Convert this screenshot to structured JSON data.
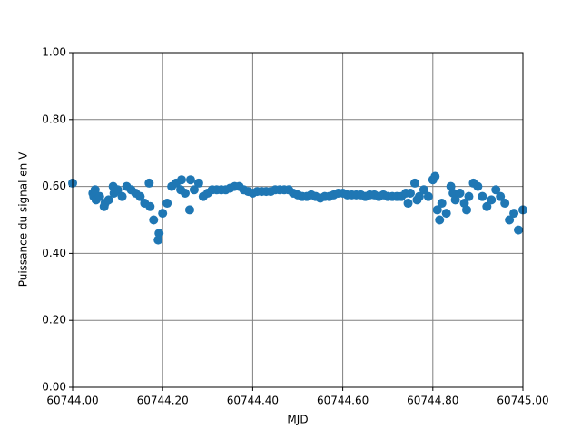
{
  "chart_data": {
    "type": "scatter",
    "xlabel": "MJD",
    "ylabel": "Puissance du signal en V",
    "color": "#1f77b4",
    "grid": true,
    "xlim": [
      60744,
      60745
    ],
    "ylim": [
      0,
      1
    ],
    "xticks": [
      {
        "value": 60744,
        "label": "60744.00"
      },
      {
        "value": 60744.2,
        "label": "60744.20"
      },
      {
        "value": 60744.4,
        "label": "60744.40"
      },
      {
        "value": 60744.6,
        "label": "60744.60"
      },
      {
        "value": 60744.8,
        "label": "60744.80"
      },
      {
        "value": 60745,
        "label": "60745.00"
      }
    ],
    "yticks": [
      {
        "value": 0,
        "label": "0.00"
      },
      {
        "value": 0.2,
        "label": "0.20"
      },
      {
        "value": 0.4,
        "label": "0.40"
      },
      {
        "value": 0.6,
        "label": "0.60"
      },
      {
        "value": 0.8,
        "label": "0.80"
      },
      {
        "value": 1,
        "label": "1.00"
      }
    ],
    "x": [
      60744.0,
      60744.045,
      60744.047,
      60744.05,
      60744.052,
      60744.06,
      60744.07,
      60744.072,
      60744.08,
      60744.09,
      60744.092,
      60744.1,
      60744.11,
      60744.12,
      60744.13,
      60744.14,
      60744.15,
      60744.16,
      60744.17,
      60744.172,
      60744.18,
      60744.19,
      60744.192,
      60744.2,
      60744.21,
      60744.22,
      60744.23,
      60744.24,
      60744.242,
      60744.25,
      60744.26,
      60744.262,
      60744.27,
      60744.28,
      60744.29,
      60744.3,
      60744.31,
      60744.32,
      60744.33,
      60744.34,
      60744.35,
      60744.36,
      60744.37,
      60744.38,
      60744.39,
      60744.4,
      60744.41,
      60744.42,
      60744.43,
      60744.44,
      60744.45,
      60744.46,
      60744.47,
      60744.48,
      60744.49,
      60744.5,
      60744.51,
      60744.52,
      60744.53,
      60744.54,
      60744.55,
      60744.56,
      60744.57,
      60744.58,
      60744.59,
      60744.6,
      60744.61,
      60744.62,
      60744.63,
      60744.64,
      60744.65,
      60744.66,
      60744.67,
      60744.68,
      60744.69,
      60744.7,
      60744.71,
      60744.72,
      60744.73,
      60744.74,
      60744.745,
      60744.75,
      60744.76,
      60744.765,
      60744.77,
      60744.78,
      60744.79,
      60744.8,
      60744.805,
      60744.81,
      60744.815,
      60744.82,
      60744.83,
      60744.84,
      60744.845,
      60744.85,
      60744.86,
      60744.87,
      60744.875,
      60744.88,
      60744.89,
      60744.9,
      60744.91,
      60744.92,
      60744.93,
      60744.94,
      60744.95,
      60744.96,
      60744.97,
      60744.98,
      60744.99,
      60745.0
    ],
    "y": [
      0.61,
      0.58,
      0.57,
      0.59,
      0.56,
      0.57,
      0.54,
      0.55,
      0.56,
      0.6,
      0.58,
      0.59,
      0.57,
      0.6,
      0.59,
      0.58,
      0.57,
      0.55,
      0.61,
      0.54,
      0.5,
      0.44,
      0.46,
      0.52,
      0.55,
      0.6,
      0.61,
      0.59,
      0.62,
      0.58,
      0.53,
      0.62,
      0.59,
      0.61,
      0.57,
      0.58,
      0.59,
      0.59,
      0.59,
      0.59,
      0.595,
      0.6,
      0.6,
      0.59,
      0.585,
      0.58,
      0.585,
      0.585,
      0.585,
      0.585,
      0.59,
      0.59,
      0.59,
      0.59,
      0.58,
      0.575,
      0.57,
      0.57,
      0.575,
      0.57,
      0.565,
      0.57,
      0.57,
      0.575,
      0.58,
      0.58,
      0.575,
      0.575,
      0.575,
      0.575,
      0.57,
      0.575,
      0.575,
      0.57,
      0.575,
      0.57,
      0.57,
      0.57,
      0.57,
      0.58,
      0.55,
      0.58,
      0.61,
      0.56,
      0.57,
      0.59,
      0.57,
      0.62,
      0.63,
      0.53,
      0.5,
      0.55,
      0.52,
      0.6,
      0.58,
      0.56,
      0.58,
      0.55,
      0.53,
      0.57,
      0.61,
      0.6,
      0.57,
      0.54,
      0.56,
      0.59,
      0.57,
      0.55,
      0.5,
      0.52,
      0.47,
      0.53
    ]
  }
}
